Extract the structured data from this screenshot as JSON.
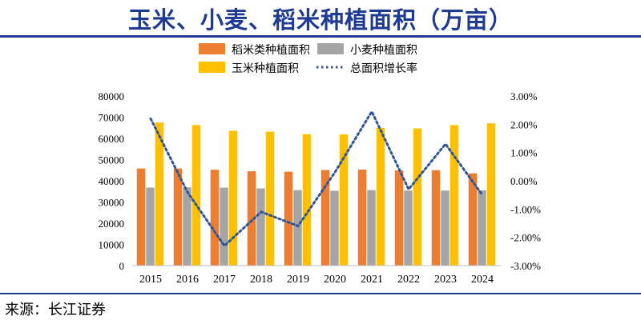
{
  "title": "玉米、小麦、稻米种植面积（万亩）",
  "source": "来源：长江证券",
  "colors": {
    "title": "#1f3a93",
    "rice": "#ed7d31",
    "wheat": "#a5a5a5",
    "corn": "#ffc000",
    "growth": "#2f5597"
  },
  "chart_data": {
    "type": "bar",
    "categories": [
      "2015",
      "2016",
      "2017",
      "2018",
      "2019",
      "2020",
      "2021",
      "2022",
      "2023",
      "2024"
    ],
    "series": [
      {
        "name": "稻米类种植面积",
        "kind": "bar",
        "axis": "left",
        "values": [
          45800,
          45800,
          45200,
          44500,
          44300,
          45100,
          45300,
          44900,
          45000,
          43500
        ]
      },
      {
        "name": "小麦种植面积",
        "kind": "bar",
        "axis": "left",
        "values": [
          36800,
          36900,
          36800,
          36400,
          35600,
          35300,
          35600,
          35400,
          35400,
          35500
        ]
      },
      {
        "name": "玉米种植面积",
        "kind": "bar",
        "axis": "left",
        "values": [
          67500,
          66300,
          63600,
          63200,
          62000,
          61900,
          65000,
          64700,
          66300,
          67100
        ]
      },
      {
        "name": "总面积增长率",
        "kind": "line",
        "axis": "right",
        "style": "dotted",
        "values": [
          2.2,
          -0.4,
          -2.3,
          -1.1,
          -1.6,
          0.3,
          2.45,
          -0.3,
          1.3,
          -0.5
        ]
      }
    ],
    "left_axis": {
      "min": 0,
      "max": 80000,
      "ticks": [
        "0",
        "10000",
        "20000",
        "30000",
        "40000",
        "50000",
        "60000",
        "70000",
        "80000"
      ]
    },
    "right_axis": {
      "min": -3,
      "max": 3,
      "ticks": [
        "-3.00%",
        "-2.00%",
        "-1.00%",
        "0.00%",
        "1.00%",
        "2.00%",
        "3.00%"
      ]
    },
    "grid": false,
    "legend_position": "top"
  }
}
